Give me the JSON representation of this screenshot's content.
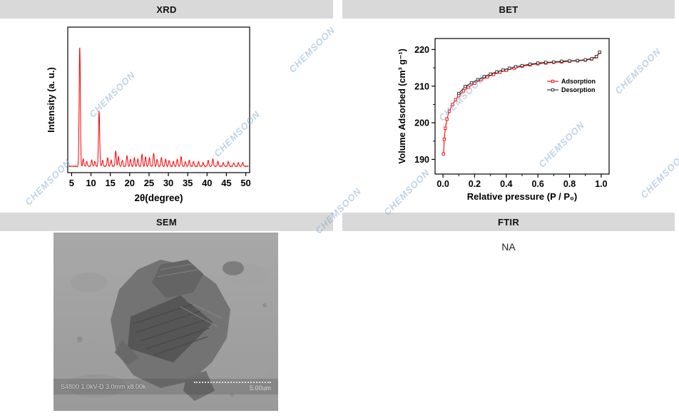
{
  "panels": {
    "xrd": {
      "title": "XRD"
    },
    "bet": {
      "title": "BET"
    },
    "sem": {
      "title": "SEM"
    },
    "ftir": {
      "title": "FTIR",
      "content": "NA"
    }
  },
  "watermark": {
    "text": "CHEMSOON",
    "color": "rgba(125,170,210,0.50)"
  },
  "sem_overlay": {
    "info": "S4800 1.0kV-D 3.0mm x8.00k",
    "scale_label": "5.00um"
  },
  "chart_data": [
    {
      "id": "xrd",
      "type": "line",
      "title": "XRD",
      "xlabel": "2θ(degree)",
      "ylabel": "Intensity (a. u.)",
      "xlim": [
        4,
        51
      ],
      "xticks": [
        5,
        10,
        15,
        20,
        25,
        30,
        35,
        40,
        45,
        50
      ],
      "grid": false,
      "line_color": "#ff0000",
      "peaks": [
        [
          7.1,
          100
        ],
        [
          8.0,
          6
        ],
        [
          8.9,
          4
        ],
        [
          10.2,
          5
        ],
        [
          11.0,
          4
        ],
        [
          12.1,
          46
        ],
        [
          13.0,
          5
        ],
        [
          14.3,
          7
        ],
        [
          15.2,
          5
        ],
        [
          16.4,
          13
        ],
        [
          17.1,
          8
        ],
        [
          18.1,
          5
        ],
        [
          19.3,
          9
        ],
        [
          20.2,
          6
        ],
        [
          21.2,
          7
        ],
        [
          22.1,
          6
        ],
        [
          23.2,
          10
        ],
        [
          24.1,
          8
        ],
        [
          25.1,
          7
        ],
        [
          26.2,
          11
        ],
        [
          27.1,
          6
        ],
        [
          28.2,
          7
        ],
        [
          29.3,
          6
        ],
        [
          30.2,
          5
        ],
        [
          31.3,
          4
        ],
        [
          32.3,
          6
        ],
        [
          33.3,
          8
        ],
        [
          34.4,
          4
        ],
        [
          35.4,
          5
        ],
        [
          36.5,
          4
        ],
        [
          37.8,
          4
        ],
        [
          39.0,
          3
        ],
        [
          40.3,
          5
        ],
        [
          41.5,
          6
        ],
        [
          42.8,
          4
        ],
        [
          44.2,
          3
        ],
        [
          45.5,
          4
        ],
        [
          46.9,
          3
        ],
        [
          48.1,
          3
        ],
        [
          49.2,
          3
        ]
      ]
    },
    {
      "id": "bet",
      "type": "line",
      "xlabel": "Relative pressure (P / P₀)",
      "ylabel": "Volume Adsorbed (cm³ g⁻¹)",
      "xlim": [
        -0.05,
        1.05
      ],
      "ylim": [
        186,
        223
      ],
      "xticks": [
        0.0,
        0.2,
        0.4,
        0.6,
        0.8,
        1.0
      ],
      "xtick_labels": [
        "0.0",
        "0.2",
        "0.4",
        "0.6",
        "0.8",
        "1.0"
      ],
      "yticks": [
        190,
        200,
        210,
        220
      ],
      "grid": false,
      "legend_position": "middle-right",
      "series": [
        {
          "name": "Adsorption",
          "color": "#ff0000",
          "marker": "square",
          "x": [
            0.003,
            0.008,
            0.015,
            0.025,
            0.04,
            0.06,
            0.08,
            0.1,
            0.13,
            0.16,
            0.2,
            0.24,
            0.28,
            0.32,
            0.36,
            0.4,
            0.45,
            0.5,
            0.55,
            0.6,
            0.65,
            0.7,
            0.75,
            0.8,
            0.85,
            0.9,
            0.94,
            0.97,
            0.99
          ],
          "y": [
            191.5,
            195.5,
            198.5,
            201.0,
            203.2,
            205.0,
            206.3,
            207.4,
            208.7,
            209.7,
            210.8,
            211.7,
            212.5,
            213.2,
            213.8,
            214.3,
            214.9,
            215.4,
            215.8,
            216.1,
            216.3,
            216.5,
            216.6,
            216.8,
            216.9,
            217.1,
            217.4,
            218.0,
            219.2
          ]
        },
        {
          "name": "Desorption",
          "color": "#2b2b2b",
          "marker": "square",
          "x": [
            0.1,
            0.14,
            0.18,
            0.22,
            0.26,
            0.3,
            0.34,
            0.38,
            0.42,
            0.46,
            0.5,
            0.55,
            0.6,
            0.65,
            0.7,
            0.75,
            0.8,
            0.85,
            0.9,
            0.94,
            0.97,
            0.99
          ],
          "y": [
            208.0,
            209.9,
            210.9,
            211.8,
            212.6,
            213.3,
            213.9,
            214.4,
            214.9,
            215.3,
            215.6,
            216.0,
            216.3,
            216.5,
            216.6,
            216.8,
            216.9,
            217.0,
            217.2,
            217.5,
            218.1,
            219.3
          ]
        }
      ]
    }
  ]
}
